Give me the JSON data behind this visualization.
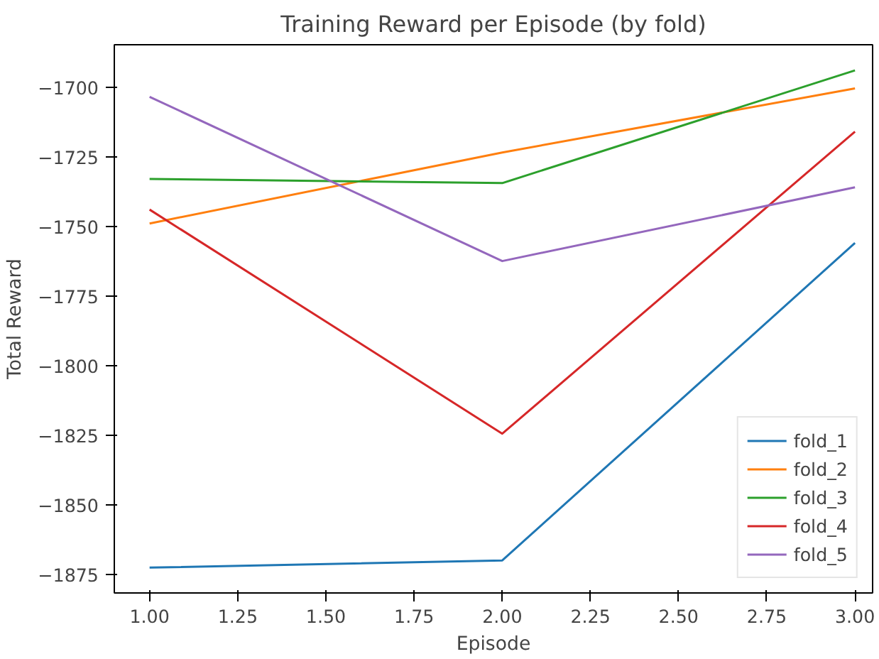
{
  "chart_data": {
    "type": "line",
    "title": "Training Reward per Episode (by fold)",
    "xlabel": "Episode",
    "ylabel": "Total Reward",
    "x": [
      1,
      2,
      3
    ],
    "series": [
      {
        "name": "fold_1",
        "color": "#1f77b4",
        "values": [
          -1872.6,
          -1870,
          -1756
        ]
      },
      {
        "name": "fold_2",
        "color": "#ff7f0e",
        "values": [
          -1749,
          -1723.5,
          -1700.5
        ]
      },
      {
        "name": "fold_3",
        "color": "#2ca02c",
        "values": [
          -1733,
          -1734.5,
          -1694
        ]
      },
      {
        "name": "fold_4",
        "color": "#d62728",
        "values": [
          -1744,
          -1824.5,
          -1716
        ]
      },
      {
        "name": "fold_5",
        "color": "#9467bd",
        "values": [
          -1703.5,
          -1762.5,
          -1736
        ]
      }
    ],
    "xlim": [
      0.9,
      3.05
    ],
    "ylim": [
      -1881.7,
      -1684.8
    ],
    "xticks": [
      {
        "value": 1,
        "label": "1.00"
      },
      {
        "value": 1.25,
        "label": "1.25"
      },
      {
        "value": 1.5,
        "label": "1.50"
      },
      {
        "value": 1.75,
        "label": "1.75"
      },
      {
        "value": 2,
        "label": "2.00"
      },
      {
        "value": 2.25,
        "label": "2.25"
      },
      {
        "value": 2.5,
        "label": "2.50"
      },
      {
        "value": 2.75,
        "label": "2.75"
      },
      {
        "value": 3,
        "label": "3.00"
      }
    ],
    "yticks": [
      {
        "value": -1875,
        "label": "−1875"
      },
      {
        "value": -1850,
        "label": "−1850"
      },
      {
        "value": -1825,
        "label": "−1825"
      },
      {
        "value": -1800,
        "label": "−1800"
      },
      {
        "value": -1775,
        "label": "−1775"
      },
      {
        "value": -1750,
        "label": "−1750"
      },
      {
        "value": -1725,
        "label": "−1725"
      },
      {
        "value": -1700,
        "label": "−1700"
      }
    ],
    "grid": false,
    "legend": "bottom right",
    "line_style": "solid",
    "marker": "none"
  }
}
